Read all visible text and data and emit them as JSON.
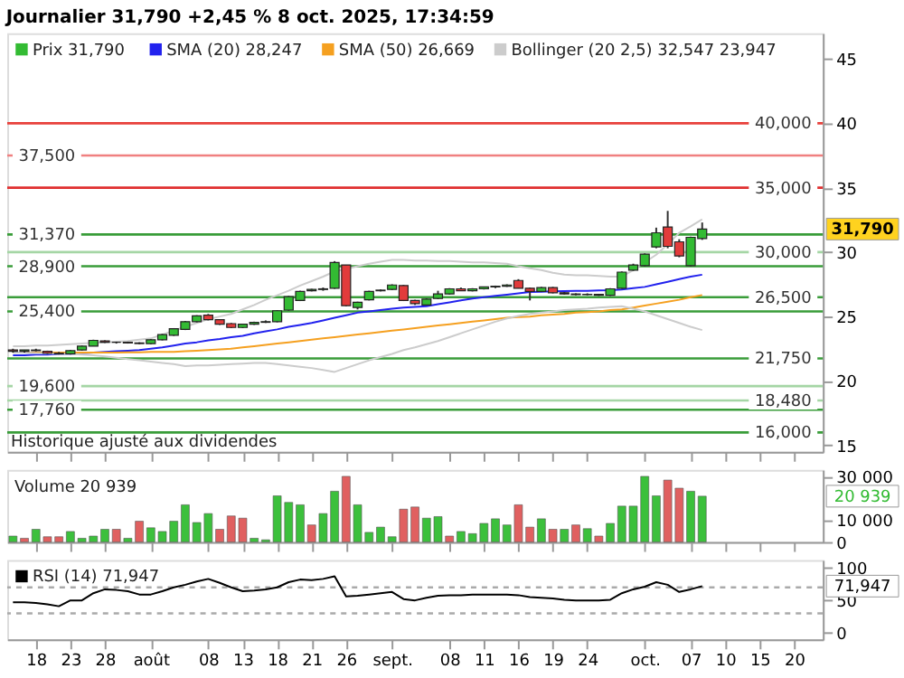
{
  "chart_data": [
    {
      "type": "candlestick",
      "title": "Journalier 31,790 +2,45 % 8 oct. 2025, 17:34:59",
      "legend_title": "Prix 31,790",
      "legend": "top left",
      "grid": false,
      "tick_labels": "y",
      "categories": [
        null,
        null,
        "18",
        null,
        null,
        "23",
        null,
        null,
        "28",
        null,
        null,
        null,
        "août",
        null,
        null,
        null,
        null,
        "08",
        null,
        null,
        "13",
        null,
        null,
        "18",
        null,
        null,
        "21",
        null,
        null,
        "26",
        null,
        null,
        null,
        "sept.",
        null,
        null,
        null,
        null,
        "08",
        null,
        null,
        "11",
        null,
        null,
        "16",
        null,
        null,
        "19",
        null,
        null,
        "24",
        null,
        null,
        null,
        null,
        "oct.",
        null,
        null,
        null,
        "07",
        null,
        null,
        "10",
        null,
        null,
        "15",
        null,
        null,
        "20",
        null,
        null
      ],
      "ohlc": [
        [
          22.4,
          22.5,
          22.2,
          22.3
        ],
        [
          22.3,
          22.4,
          22.2,
          22.4
        ],
        [
          22.4,
          22.5,
          22.3,
          22.35
        ],
        [
          22.3,
          22.35,
          22.1,
          22.15
        ],
        [
          22.15,
          22.25,
          22.05,
          22.1
        ],
        [
          22.1,
          22.4,
          22.05,
          22.35
        ],
        [
          22.4,
          22.75,
          22.35,
          22.7
        ],
        [
          22.7,
          23.2,
          22.7,
          23.15
        ],
        [
          23.1,
          23.15,
          22.95,
          23.0
        ],
        [
          23.0,
          23.05,
          22.9,
          23.0
        ],
        [
          23.0,
          23.05,
          22.9,
          22.95
        ],
        [
          22.95,
          23.0,
          22.85,
          22.9
        ],
        [
          22.9,
          23.25,
          22.85,
          23.2
        ],
        [
          23.2,
          23.65,
          23.15,
          23.6
        ],
        [
          23.55,
          24.1,
          23.5,
          24.05
        ],
        [
          24.0,
          24.65,
          23.95,
          24.6
        ],
        [
          24.6,
          25.1,
          24.55,
          25.05
        ],
        [
          25.1,
          25.2,
          24.7,
          24.75
        ],
        [
          24.75,
          24.8,
          24.35,
          24.4
        ],
        [
          24.45,
          24.5,
          24.1,
          24.15
        ],
        [
          24.15,
          24.45,
          24.1,
          24.4
        ],
        [
          24.4,
          24.6,
          24.35,
          24.55
        ],
        [
          24.55,
          24.7,
          24.5,
          24.6
        ],
        [
          24.6,
          25.5,
          24.55,
          25.45
        ],
        [
          25.5,
          26.6,
          25.45,
          26.55
        ],
        [
          26.25,
          27.0,
          26.2,
          26.95
        ],
        [
          27.0,
          27.15,
          26.95,
          27.1
        ],
        [
          27.1,
          27.25,
          27.0,
          27.15
        ],
        [
          27.2,
          29.3,
          27.15,
          29.2
        ],
        [
          29.0,
          29.0,
          25.8,
          25.85
        ],
        [
          25.7,
          26.15,
          25.55,
          26.1
        ],
        [
          26.3,
          27.0,
          26.25,
          26.95
        ],
        [
          27.0,
          27.1,
          26.95,
          27.05
        ],
        [
          27.1,
          27.5,
          27.05,
          27.45
        ],
        [
          27.4,
          27.45,
          26.2,
          26.25
        ],
        [
          26.25,
          26.3,
          25.9,
          26.0
        ],
        [
          25.9,
          26.4,
          25.85,
          26.35
        ],
        [
          26.4,
          27.0,
          26.35,
          26.75
        ],
        [
          26.75,
          27.2,
          26.7,
          27.15
        ],
        [
          27.15,
          27.25,
          27.0,
          27.0
        ],
        [
          27.0,
          27.2,
          26.95,
          27.15
        ],
        [
          27.15,
          27.3,
          27.1,
          27.3
        ],
        [
          27.3,
          27.4,
          27.2,
          27.35
        ],
        [
          27.35,
          27.5,
          27.3,
          27.45
        ],
        [
          27.8,
          27.9,
          27.2,
          27.2
        ],
        [
          27.2,
          27.25,
          26.25,
          26.95
        ],
        [
          26.95,
          27.3,
          26.9,
          27.25
        ],
        [
          27.25,
          27.3,
          26.8,
          26.85
        ],
        [
          26.85,
          26.9,
          26.7,
          26.75
        ],
        [
          26.75,
          26.8,
          26.65,
          26.7
        ],
        [
          26.7,
          26.8,
          26.65,
          26.72
        ],
        [
          26.72,
          26.75,
          26.6,
          26.65
        ],
        [
          26.65,
          27.2,
          26.6,
          27.15
        ],
        [
          27.2,
          28.5,
          27.15,
          28.45
        ],
        [
          28.6,
          29.1,
          28.55,
          29.0
        ],
        [
          28.95,
          29.9,
          28.9,
          29.85
        ],
        [
          30.4,
          31.9,
          30.3,
          31.5
        ],
        [
          31.95,
          33.2,
          30.3,
          30.45
        ],
        [
          30.8,
          31.0,
          29.6,
          29.7
        ],
        [
          28.95,
          31.2,
          28.9,
          31.15
        ],
        [
          31.05,
          32.3,
          30.95,
          31.79
        ],
        null,
        null,
        null,
        null,
        null,
        null,
        null,
        null,
        null,
        null
      ],
      "series": [
        {
          "name": "SMA (20) 28,247",
          "type": "line",
          "color": "#2222ee",
          "values": [
            22.0,
            22.0,
            22.05,
            22.05,
            22.1,
            22.1,
            22.15,
            22.2,
            22.25,
            22.3,
            22.35,
            22.4,
            22.5,
            22.6,
            22.75,
            22.9,
            23.0,
            23.15,
            23.25,
            23.4,
            23.5,
            23.7,
            23.85,
            24.0,
            24.2,
            24.35,
            24.5,
            24.7,
            24.9,
            25.1,
            25.3,
            25.4,
            25.5,
            25.6,
            25.7,
            25.75,
            25.8,
            25.95,
            26.1,
            26.25,
            26.4,
            26.5,
            26.6,
            26.7,
            26.8,
            26.9,
            26.92,
            26.95,
            26.97,
            27.0,
            27.0,
            27.02,
            27.05,
            27.1,
            27.2,
            27.3,
            27.5,
            27.7,
            27.9,
            28.1,
            28.247,
            null,
            null,
            null,
            null,
            null,
            null,
            null,
            null,
            null,
            null
          ]
        },
        {
          "name": "SMA (50) 26,669",
          "type": "line",
          "color": "#f5a020",
          "values": [
            22.2,
            22.2,
            22.2,
            22.2,
            22.2,
            22.2,
            22.2,
            22.2,
            22.2,
            22.2,
            22.22,
            22.22,
            22.25,
            22.25,
            22.25,
            22.3,
            22.35,
            22.4,
            22.45,
            22.5,
            22.6,
            22.7,
            22.8,
            22.9,
            23.0,
            23.1,
            23.2,
            23.3,
            23.4,
            23.5,
            23.6,
            23.7,
            23.8,
            23.9,
            24.0,
            24.1,
            24.2,
            24.3,
            24.4,
            24.5,
            24.6,
            24.7,
            24.8,
            24.9,
            24.95,
            25.0,
            25.1,
            25.15,
            25.2,
            25.3,
            25.35,
            25.4,
            25.5,
            25.55,
            25.7,
            25.85,
            26.0,
            26.15,
            26.3,
            26.5,
            26.669,
            null,
            null,
            null,
            null,
            null,
            null,
            null,
            null,
            null,
            null
          ]
        },
        {
          "name": "Bollinger (20 2,5) 32,547 23,947",
          "type": "line",
          "color": "#cccccc",
          "values": [
            22.7,
            22.7,
            22.75,
            22.75,
            22.8,
            22.85,
            22.9,
            22.95,
            23.0,
            23.05,
            23.1,
            23.2,
            23.3,
            23.6,
            23.9,
            24.2,
            24.5,
            24.8,
            25.0,
            25.2,
            25.55,
            25.9,
            26.3,
            26.65,
            27.0,
            27.4,
            27.75,
            28.1,
            28.5,
            28.7,
            28.9,
            29.1,
            29.25,
            29.4,
            29.4,
            29.35,
            29.35,
            29.3,
            29.3,
            29.25,
            29.2,
            29.2,
            29.15,
            29.1,
            28.9,
            28.75,
            28.6,
            28.4,
            28.25,
            28.2,
            28.2,
            28.15,
            28.1,
            28.1,
            28.6,
            29.2,
            29.8,
            30.6,
            31.5,
            32.0,
            32.547,
            null,
            null,
            null,
            null,
            null,
            null,
            null,
            null,
            null,
            null
          ]
        },
        {
          "type": "line",
          "color": "#cccccc",
          "values": [
            22.2,
            22.2,
            22.15,
            22.15,
            22.1,
            22.1,
            22.05,
            22.0,
            21.9,
            21.8,
            21.7,
            21.6,
            21.5,
            21.4,
            21.3,
            21.15,
            21.2,
            21.2,
            21.25,
            21.3,
            21.35,
            21.4,
            21.4,
            21.3,
            21.2,
            21.1,
            21.0,
            20.85,
            20.7,
            21.0,
            21.3,
            21.6,
            21.85,
            22.1,
            22.4,
            22.6,
            22.85,
            23.1,
            23.4,
            23.7,
            24.0,
            24.3,
            24.6,
            24.85,
            25.05,
            25.2,
            25.3,
            25.4,
            25.5,
            25.55,
            25.6,
            25.7,
            25.75,
            25.8,
            25.6,
            25.4,
            25.1,
            24.8,
            24.5,
            24.2,
            23.947,
            null,
            null,
            null,
            null,
            null,
            null,
            null,
            null,
            null,
            null
          ]
        }
      ],
      "ylim": [
        14.5,
        47
      ],
      "yticks": [
        15,
        20,
        25,
        30,
        35,
        40,
        45
      ],
      "ref_lines": [
        {
          "axis": "y",
          "value": 40,
          "label": "40,000",
          "color": "#e8413c"
        },
        {
          "axis": "y",
          "value": 37.5,
          "label": "37,500",
          "color": "#f08080"
        },
        {
          "axis": "y",
          "value": 35,
          "label": "35,000",
          "color": "#e03030"
        },
        {
          "axis": "y",
          "value": 31.37,
          "label": "31,370",
          "color": "#3a9d3a"
        },
        {
          "axis": "y",
          "value": 30,
          "label": "30,000",
          "color": "#a5d6a5"
        },
        {
          "axis": "y",
          "value": 28.9,
          "label": "28,900",
          "color": "#3a9d3a"
        },
        {
          "axis": "y",
          "value": 26.5,
          "label": "26,500",
          "color": "#3a9d3a"
        },
        {
          "axis": "y",
          "value": 25.4,
          "label": "25,400",
          "color": "#3a9d3a"
        },
        {
          "axis": "y",
          "value": 21.75,
          "label": "21,750",
          "color": "#3a9d3a"
        },
        {
          "axis": "y",
          "value": 19.6,
          "label": "19,600",
          "color": "#a5d6a5"
        },
        {
          "axis": "y",
          "value": 18.48,
          "label": "18,480",
          "color": "#a5d6a5"
        },
        {
          "axis": "y",
          "value": 17.76,
          "label": "17,760",
          "color": "#3a9d3a"
        },
        {
          "axis": "y",
          "value": 16,
          "label": "16,000",
          "color": "#3a9d3a"
        }
      ],
      "annotations": [
        "31,790",
        "Historique ajusté aux dividendes"
      ]
    },
    {
      "type": "bar",
      "legend_title": "Volume 20 939",
      "grid": false,
      "tick_labels": "y",
      "categories": [
        null,
        null,
        "18",
        null,
        null,
        "23",
        null,
        null,
        "28",
        null,
        null,
        null,
        "août",
        null,
        null,
        null,
        null,
        "08",
        null,
        null,
        "13",
        null,
        null,
        "18",
        null,
        null,
        "21",
        null,
        null,
        "26",
        null,
        null,
        null,
        "sept.",
        null,
        null,
        null,
        null,
        "08",
        null,
        null,
        "11",
        null,
        null,
        "16",
        null,
        null,
        "19",
        null,
        null,
        "24",
        null,
        null,
        null,
        null,
        "oct.",
        null,
        null,
        null,
        "07",
        null,
        null,
        "10",
        null,
        null,
        "15",
        null,
        null,
        "20",
        null,
        null
      ],
      "values": [
        2700,
        1700,
        5800,
        2400,
        2400,
        4800,
        1700,
        2700,
        5800,
        5800,
        1700,
        9500,
        6500,
        4800,
        9500,
        17000,
        8900,
        13000,
        5800,
        11900,
        10900,
        1700,
        1000,
        21100,
        18100,
        17000,
        7800,
        13000,
        23200,
        30000,
        17000,
        4400,
        6800,
        2400,
        15000,
        16000,
        10900,
        11600,
        2700,
        4800,
        3800,
        8500,
        10600,
        7800,
        17000,
        6800,
        10600,
        5800,
        5800,
        7800,
        6100,
        2700,
        8500,
        16400,
        16400,
        30000,
        21100,
        28300,
        24600,
        23200,
        20939,
        null,
        null,
        null,
        null,
        null,
        null,
        null,
        null,
        null,
        null
      ],
      "colors": [
        "#3cc03c",
        "#e06060",
        "#3cc03c",
        "#e06060",
        "#e06060",
        "#3cc03c",
        "#3cc03c",
        "#3cc03c",
        "#3cc03c",
        "#e06060",
        "#3cc03c",
        "#e06060",
        "#3cc03c",
        "#3cc03c",
        "#3cc03c",
        "#3cc03c",
        "#3cc03c",
        "#3cc03c",
        "#e06060",
        "#e06060",
        "#e06060",
        "#3cc03c",
        "#3cc03c",
        "#3cc03c",
        "#3cc03c",
        "#3cc03c",
        "#e06060",
        "#3cc03c",
        "#3cc03c",
        "#e06060",
        "#3cc03c",
        "#3cc03c",
        "#3cc03c",
        "#3cc03c",
        "#e06060",
        "#e06060",
        "#3cc03c",
        "#3cc03c",
        "#e06060",
        "#3cc03c",
        "#3cc03c",
        "#3cc03c",
        "#3cc03c",
        "#3cc03c",
        "#e06060",
        "#e06060",
        "#3cc03c",
        "#e06060",
        "#3cc03c",
        "#e06060",
        "#3cc03c",
        "#e06060",
        "#3cc03c",
        "#3cc03c",
        "#3cc03c",
        "#3cc03c",
        "#3cc03c",
        "#e06060",
        "#e06060",
        "#3cc03c",
        "#3cc03c",
        null,
        null,
        null,
        null,
        null,
        null,
        null,
        null,
        null,
        null
      ],
      "ylim": [
        0,
        33000
      ],
      "yticks": [
        0,
        {
          "value": 10000,
          "label": "10 000"
        },
        {
          "value": 30000,
          "label": "30 000"
        }
      ],
      "annotations": [
        "20 939"
      ]
    },
    {
      "type": "line",
      "grid": false,
      "categories": [
        null,
        null,
        "18",
        null,
        null,
        "23",
        null,
        null,
        "28",
        null,
        null,
        null,
        "août",
        null,
        null,
        null,
        null,
        "08",
        null,
        null,
        "13",
        null,
        null,
        "18",
        null,
        null,
        "21",
        null,
        null,
        "26",
        null,
        null,
        null,
        "sept.",
        null,
        null,
        null,
        null,
        "08",
        null,
        null,
        "11",
        null,
        null,
        "16",
        null,
        null,
        "19",
        null,
        null,
        "24",
        null,
        null,
        null,
        null,
        "oct.",
        null,
        null,
        null,
        "07",
        null,
        null,
        "10",
        null,
        null,
        "15",
        null,
        null,
        "20",
        null,
        null
      ],
      "series": [
        {
          "name": "RSI (14) 71,947",
          "color": "#000000",
          "values": [
            47,
            47,
            46,
            44,
            41,
            50,
            50,
            61,
            67,
            66,
            64,
            59,
            59,
            64,
            70,
            74,
            79,
            83,
            77,
            70,
            64,
            65,
            67,
            70,
            78,
            82,
            81,
            83,
            87,
            56,
            57,
            59,
            61,
            63,
            52,
            50,
            54,
            57,
            58,
            58,
            59,
            59,
            59,
            59,
            58,
            55,
            54,
            53,
            51,
            50,
            50,
            50,
            51,
            61,
            67,
            71,
            78,
            74,
            63,
            67,
            71.947,
            null,
            null,
            null,
            null,
            null,
            null,
            null,
            null,
            null,
            null
          ]
        }
      ],
      "ylim": [
        -10,
        112
      ],
      "yticks": [
        0,
        50,
        100
      ],
      "ref_lines": [
        {
          "axis": "y",
          "value": 70,
          "color": "#aaaaaa",
          "line_style": "dashed"
        },
        {
          "axis": "y",
          "value": 30,
          "color": "#aaaaaa",
          "line_style": "dashed"
        }
      ],
      "annotations": [
        "71,947"
      ]
    }
  ]
}
